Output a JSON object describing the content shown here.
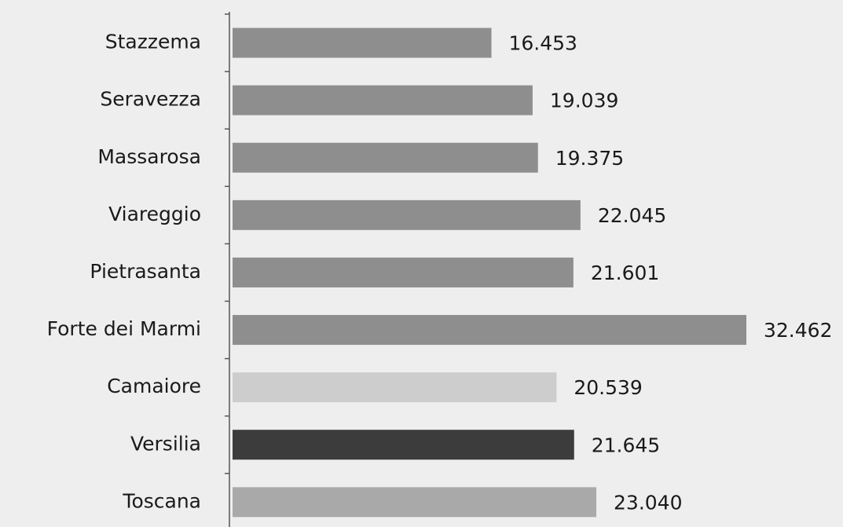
{
  "chart_data": {
    "type": "barh",
    "categories": [
      "Stazzema",
      "Seravezza",
      "Massarosa",
      "Viareggio",
      "Pietrasanta",
      "Forte dei Marmi",
      "Camaiore",
      "Versilia",
      "Toscana"
    ],
    "values": [
      16453,
      19039,
      19375,
      22045,
      21601,
      32462,
      20539,
      21645,
      23040
    ],
    "value_labels": [
      "16.453",
      "19.039",
      "19.375",
      "22.045",
      "21.601",
      "32.462",
      "20.539",
      "21.645",
      "23.040"
    ],
    "colors": [
      "#8e8e8e",
      "#8e8e8e",
      "#8e8e8e",
      "#8e8e8e",
      "#8e8e8e",
      "#8e8e8e",
      "#cdcdcd",
      "#3c3c3c",
      "#a9a9a9"
    ]
  }
}
